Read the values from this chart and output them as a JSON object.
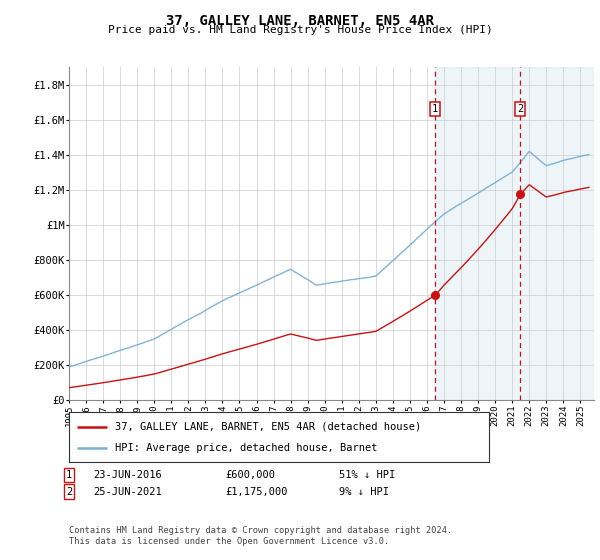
{
  "title": "37, GALLEY LANE, BARNET, EN5 4AR",
  "subtitle": "Price paid vs. HM Land Registry's House Price Index (HPI)",
  "ylabel_ticks": [
    "£0",
    "£200K",
    "£400K",
    "£600K",
    "£800K",
    "£1M",
    "£1.2M",
    "£1.4M",
    "£1.6M",
    "£1.8M"
  ],
  "ytick_values": [
    0,
    200000,
    400000,
    600000,
    800000,
    1000000,
    1200000,
    1400000,
    1600000,
    1800000
  ],
  "ylim": [
    0,
    1900000
  ],
  "xlim_start": 1995.0,
  "xlim_end": 2025.8,
  "hpi_color": "#7ab0d4",
  "price_color": "#cc1111",
  "marker1_date": 2016.48,
  "marker1_price": 600000,
  "marker2_date": 2021.48,
  "marker2_price": 1175000,
  "marker1_label": "23-JUN-2016",
  "marker2_label": "25-JUN-2021",
  "marker1_price_label": "£600,000",
  "marker2_price_label": "£1,175,000",
  "marker1_hpi_label": "51% ↓ HPI",
  "marker2_hpi_label": "9% ↓ HPI",
  "legend_line1": "37, GALLEY LANE, BARNET, EN5 4AR (detached house)",
  "legend_line2": "HPI: Average price, detached house, Barnet",
  "footer": "Contains HM Land Registry data © Crown copyright and database right 2024.\nThis data is licensed under the Open Government Licence v3.0.",
  "plot_bg": "#ffffff"
}
